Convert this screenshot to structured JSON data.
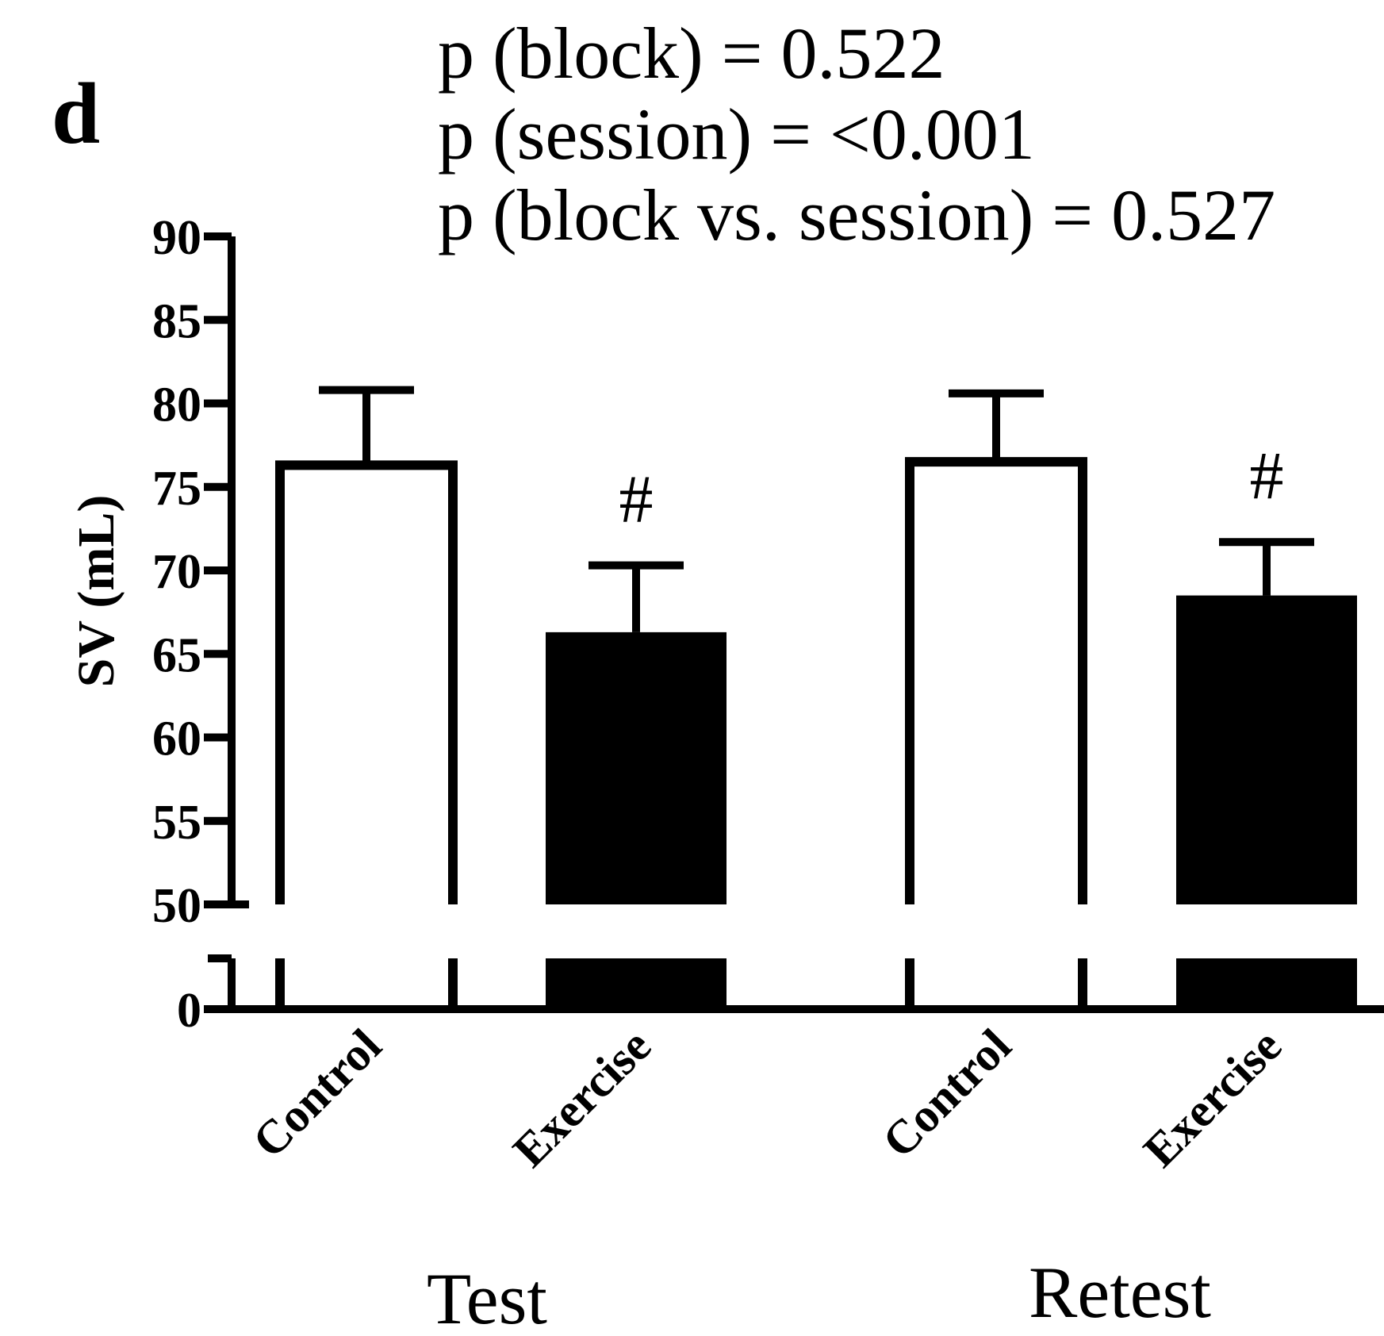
{
  "panel_label": "d",
  "annotations": [
    "p (block) = 0.522",
    "p (session) = <0.001",
    "p (block vs. session) = 0.527"
  ],
  "chart_data": {
    "type": "bar",
    "ylabel": "SV (mL)",
    "yticks": [
      0,
      50,
      55,
      60,
      65,
      70,
      75,
      80,
      85,
      90
    ],
    "ylim": [
      0,
      90
    ],
    "axis_break": [
      0,
      50
    ],
    "groups": [
      "Test",
      "Retest"
    ],
    "bars": [
      {
        "group": "Test",
        "category": "Control",
        "value": 76.3,
        "error": 4.5,
        "fill": "#ffffff",
        "marker": ""
      },
      {
        "group": "Test",
        "category": "Exercise",
        "value": 66.3,
        "error": 4.0,
        "fill": "#000000",
        "marker": "#"
      },
      {
        "group": "Retest",
        "category": "Control",
        "value": 76.5,
        "error": 4.1,
        "fill": "#ffffff",
        "marker": ""
      },
      {
        "group": "Retest",
        "category": "Exercise",
        "value": 68.5,
        "error": 3.2,
        "fill": "#000000",
        "marker": "#"
      }
    ]
  }
}
